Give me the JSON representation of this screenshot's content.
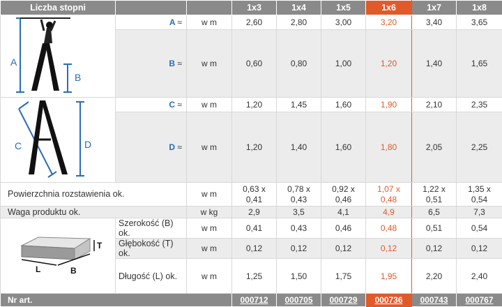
{
  "header": {
    "label": "Liczba stopni",
    "cols": [
      "1x3",
      "1x4",
      "1x5",
      "1x6",
      "1x7",
      "1x8"
    ]
  },
  "rows": {
    "A": {
      "label": "A",
      "approx": "≈",
      "unit": "w m",
      "values": [
        "2,60",
        "2,80",
        "3,00",
        "3,20",
        "3,40",
        "3,65"
      ]
    },
    "B": {
      "label": "B",
      "approx": "≈",
      "unit": "w m",
      "values": [
        "0,60",
        "0,80",
        "1,00",
        "1,20",
        "1,40",
        "1,65"
      ]
    },
    "C": {
      "label": "C",
      "approx": "≈",
      "unit": "w m",
      "values": [
        "1,20",
        "1,45",
        "1,60",
        "1,90",
        "2,10",
        "2,35"
      ]
    },
    "D": {
      "label": "D",
      "approx": "≈",
      "unit": "w m",
      "values": [
        "1,20",
        "1,40",
        "1,60",
        "1,80",
        "2,05",
        "2,25"
      ]
    },
    "surface": {
      "label": "Powierzchnia rozstawienia ok.",
      "unit": "w m",
      "line1": [
        "0,63 x",
        "0,78 x",
        "0,92 x",
        "1,07 x",
        "1,22 x",
        "1,35 x"
      ],
      "line2": [
        "0,41",
        "0,43",
        "0,46",
        "0,48",
        "0,51",
        "0,54"
      ]
    },
    "weight": {
      "label": "Waga produktu ok.",
      "unit": "w kg",
      "values": [
        "2,9",
        "3,5",
        "4,1",
        "4,9",
        "6,5",
        "7,3"
      ]
    },
    "width": {
      "label": "Szerokość (B) ok.",
      "unit": "w m",
      "values": [
        "0,41",
        "0,43",
        "0,46",
        "0,48",
        "0,51",
        "0,54"
      ]
    },
    "depth": {
      "label": "Głębokość (T) ok.",
      "unit": "w m",
      "values": [
        "0,12",
        "0,12",
        "0,12",
        "0,12",
        "0,12",
        "0,12"
      ]
    },
    "length": {
      "label": "Długość (L) ok.",
      "unit": "w m",
      "values": [
        "1,25",
        "1,50",
        "1,75",
        "1,95",
        "2,20",
        "2,40"
      ]
    }
  },
  "footer": {
    "label": "Nr art.",
    "articles": [
      "000712",
      "000705",
      "000729",
      "000736",
      "000743",
      "000767"
    ]
  },
  "figures": {
    "ladder_open": {
      "labels": [
        "A",
        "B"
      ]
    },
    "ladder_closed": {
      "labels": [
        "C",
        "D"
      ]
    },
    "package": {
      "labels": [
        "T",
        "L",
        "B"
      ]
    }
  },
  "colors": {
    "highlight": "#e05a2a",
    "header_bg": "#8a8a8a",
    "label_blue": "#2a6db5",
    "row_gray": "#ececec"
  }
}
